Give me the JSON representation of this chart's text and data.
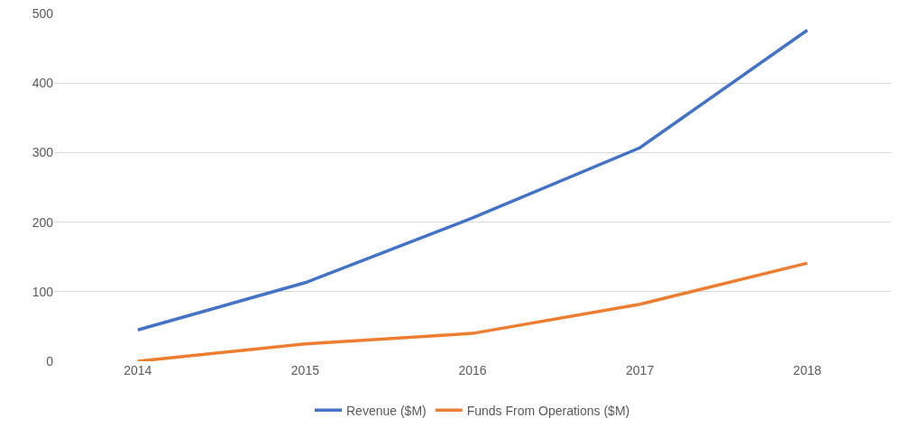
{
  "chart_data": {
    "type": "line",
    "categories": [
      "2014",
      "2015",
      "2016",
      "2017",
      "2018"
    ],
    "series": [
      {
        "name": "Revenue ($M)",
        "color": "#4472c4",
        "values": [
          45,
          113,
          206,
          307,
          476
        ]
      },
      {
        "name": "Funds From Operations ($M)",
        "color": "#ed7d31",
        "values": [
          0,
          25,
          40,
          82,
          141
        ]
      }
    ],
    "ylim": [
      0,
      500
    ],
    "yticks": [
      0,
      100,
      200,
      300,
      400,
      500
    ],
    "grid": "y",
    "legend": "bottom",
    "marker": "none",
    "line_style": "solid"
  }
}
